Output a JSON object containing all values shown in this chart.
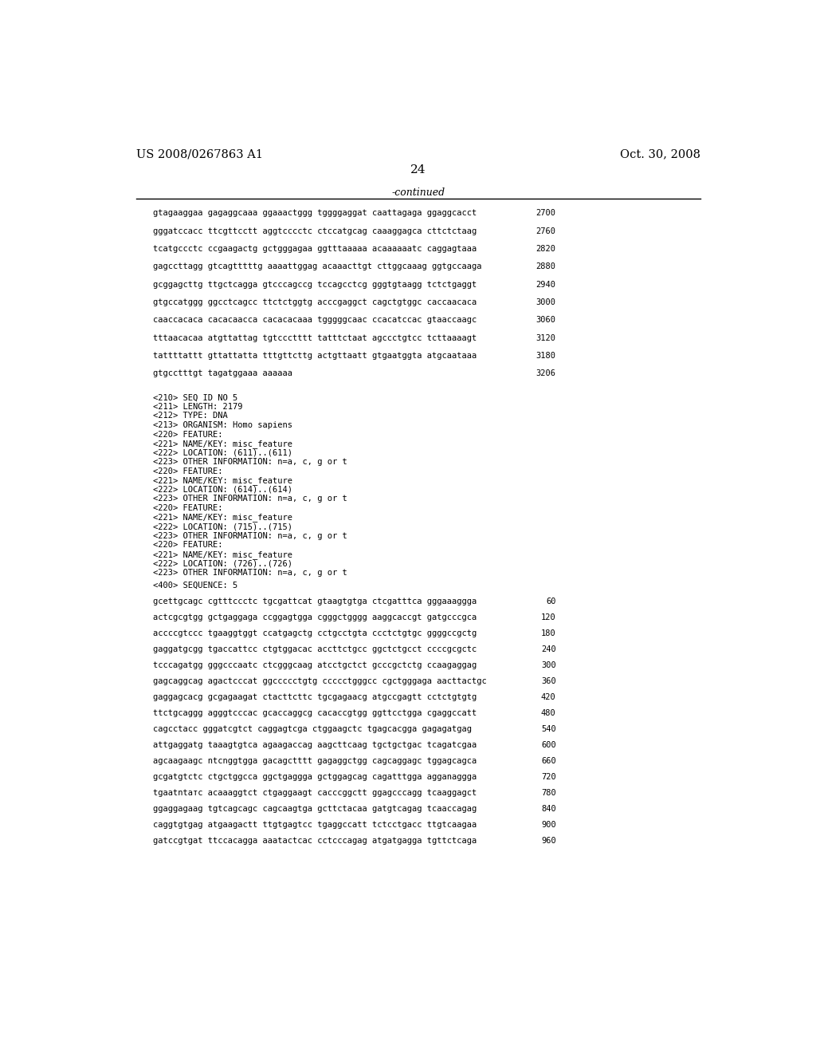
{
  "header_left": "US 2008/0267863 A1",
  "header_right": "Oct. 30, 2008",
  "page_number": "24",
  "continued_label": "-continued",
  "background_color": "#ffffff",
  "text_color": "#000000",
  "font_size_header": 10.5,
  "font_size_page": 11,
  "font_size_mono": 7.5,
  "lines": [
    {
      "text": "gtagaaggaa gagaggcaaa ggaaactggg tggggaggat caattagaga ggaggcacct",
      "num": "2700"
    },
    {
      "text": "gggatccacc ttcgttcctt aggtcccctc ctccatgcag caaaggagca cttctctaag",
      "num": "2760"
    },
    {
      "text": "tcatgccctc ccgaagactg gctgggagaa ggtttaaaaa acaaaaaatc caggagtaaa",
      "num": "2820"
    },
    {
      "text": "gagccttagg gtcagtttttg aaaattggag acaaacttgt cttggcaaag ggtgccaaga",
      "num": "2880"
    },
    {
      "text": "gcggagcttg ttgctcagga gtcccagccg tccagcctcg gggtgtaagg tctctgaggt",
      "num": "2940"
    },
    {
      "text": "gtgccatggg ggcctcagcc ttctctggtg acccgaggct cagctgtggc caccaacaca",
      "num": "3000"
    },
    {
      "text": "caaccacaca cacacaacca cacacacaaa tgggggcaac ccacatccac gtaaccaagc",
      "num": "3060"
    },
    {
      "text": "tttaacacaa atgttattag tgtccctttt tatttctaat agccctgtcc tcttaaaagt",
      "num": "3120"
    },
    {
      "text": "tattttattt gttattatta tttgttcttg actgttaatt gtgaatggta atgcaataaa",
      "num": "3180"
    },
    {
      "text": "gtgcctttgt tagatggaaa aaaaaa",
      "num": "3206"
    }
  ],
  "metadata_lines": [
    "<210> SEQ ID NO 5",
    "<211> LENGTH: 2179",
    "<212> TYPE: DNA",
    "<213> ORGANISM: Homo sapiens",
    "<220> FEATURE:",
    "<221> NAME/KEY: misc_feature",
    "<222> LOCATION: (611)..(611)",
    "<223> OTHER INFORMATION: n=a, c, g or t",
    "<220> FEATURE:",
    "<221> NAME/KEY: misc_feature",
    "<222> LOCATION: (614)..(614)",
    "<223> OTHER INFORMATION: n=a, c, g or t",
    "<220> FEATURE:",
    "<221> NAME/KEY: misc_feature",
    "<222> LOCATION: (715)..(715)",
    "<223> OTHER INFORMATION: n=a, c, g or t",
    "<220> FEATURE:",
    "<221> NAME/KEY: misc_feature",
    "<222> LOCATION: (726)..(726)",
    "<223> OTHER INFORMATION: n=a, c, g or t"
  ],
  "seq400_label": "<400> SEQUENCE: 5",
  "seq_lines": [
    {
      "text": "gcettgcagc cgtttccctc tgcgattcat gtaagtgtga ctcgatttca gggaaaggga",
      "num": "60"
    },
    {
      "text": "actcgcgtgg gctgaggaga ccggagtgga cgggctgggg aaggcaccgt gatgcccgca",
      "num": "120"
    },
    {
      "text": "accccgtccc tgaaggtggt ccatgagctg cctgcctgta ccctctgtgc ggggccgctg",
      "num": "180"
    },
    {
      "text": "gaggatgcgg tgaccattcc ctgtggacac accttctgcc ggctctgcct ccccgcgctc",
      "num": "240"
    },
    {
      "text": "tcccagatgg gggcccaatc ctcgggcaag atcctgctct gcccgctctg ccaagaggag",
      "num": "300"
    },
    {
      "text": "gagcaggcag agactcccat ggccccctgtg ccccctgggcc cgctgggaga aacttactgc",
      "num": "360"
    },
    {
      "text": "gaggagcacg gcgagaagat ctacttcttc tgcgagaacg atgccgagtt cctctgtgtg",
      "num": "420"
    },
    {
      "text": "ttctgcaggg agggtcccac gcaccaggcg cacaccgtgg ggttcctgga cgaggccatt",
      "num": "480"
    },
    {
      "text": "cagcctacc gggatcgtct caggagtcga ctggaagctc tgagcacgga gagagatgag",
      "num": "540"
    },
    {
      "text": "attgaggatg taaagtgtca agaagaccag aagcttcaag tgctgctgac tcagatcgaa",
      "num": "600"
    },
    {
      "text": "agcaagaagc ntcnggtgga gacagctttt gagaggctgg cagcaggagc tggagcagca",
      "num": "660"
    },
    {
      "text": "gcgatgtctc ctgctggcca ggctgaggga gctggagcag cagatttgga agganaggga",
      "num": "720"
    },
    {
      "text": "tgaatntатс acaaaggtct ctgaggaagt cacccggctt ggagcccagg tcaaggagct",
      "num": "780"
    },
    {
      "text": "ggaggagaag tgtcagcagc cagcaagtga gcttctacaa gatgtcagag tcaaccagag",
      "num": "840"
    },
    {
      "text": "caggtgtgag atgaagactt ttgtgagtcc tgaggccatt tctcctgacc ttgtcaagaa",
      "num": "900"
    },
    {
      "text": "gatccgtgat ttccacagga aaatactcac cctcccagag atgatgagga tgttctcaga",
      "num": "960"
    }
  ]
}
